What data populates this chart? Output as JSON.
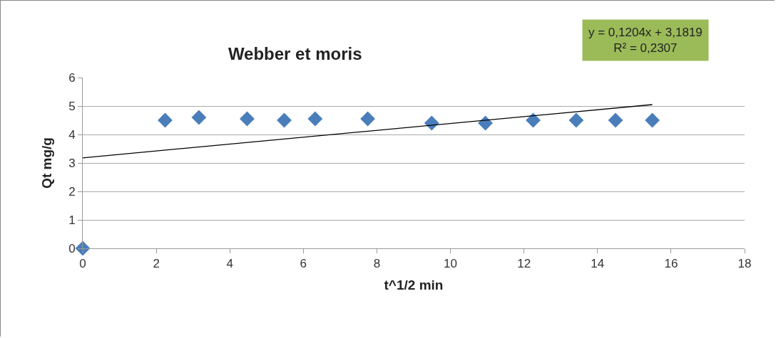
{
  "chart_data": {
    "type": "scatter",
    "title": "Webber et moris",
    "xlabel": "t^1/2 min",
    "ylabel": "Qt mg/g",
    "series": [
      {
        "color": "#4a7ebb",
        "marker": "diamond",
        "x": [
          0,
          2.24,
          3.16,
          4.47,
          5.48,
          6.32,
          7.75,
          9.49,
          10.95,
          12.25,
          13.42,
          14.49,
          15.49
        ],
        "values": [
          0,
          4.5,
          4.6,
          4.55,
          4.5,
          4.55,
          4.55,
          4.4,
          4.4,
          4.5,
          4.5,
          4.5,
          4.5
        ]
      },
      {
        "type": "line",
        "color": "#000000",
        "line_style": "solid",
        "x": [
          0,
          15.49
        ],
        "values": [
          3.18,
          5.05
        ]
      }
    ],
    "annotations": [
      "y = 0,1204x + 3,1819",
      "R² = 0,2307"
    ],
    "xlim": [
      0,
      18
    ],
    "xticks": [
      0,
      2,
      4,
      6,
      8,
      10,
      12,
      14,
      16,
      18
    ],
    "ylim": [
      0,
      6
    ],
    "yticks": [
      0,
      1,
      2,
      3,
      4,
      5,
      6
    ],
    "grid": "y",
    "legend": false
  }
}
